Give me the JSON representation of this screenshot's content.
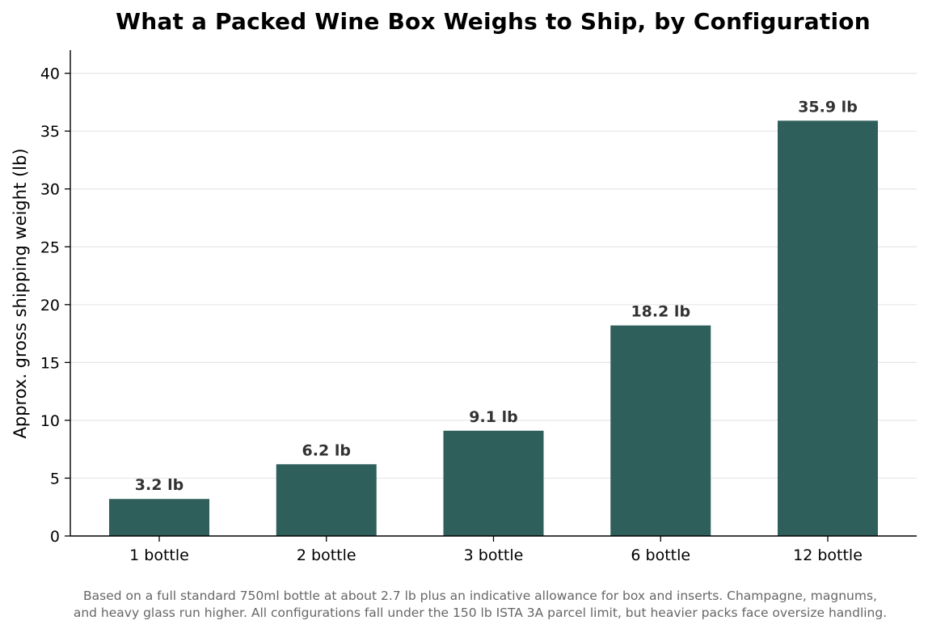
{
  "chart_data": {
    "type": "bar",
    "title": "What a Packed Wine Box Weighs to Ship, by Configuration",
    "categories": [
      "1 bottle",
      "2 bottle",
      "3 bottle",
      "6 bottle",
      "12 bottle"
    ],
    "values": [
      3.2,
      6.2,
      9.1,
      18.2,
      35.9
    ],
    "data_labels": [
      "3.2 lb",
      "6.2 lb",
      "9.1 lb",
      "18.2 lb",
      "35.9 lb"
    ],
    "xlabel": "",
    "ylabel": "Approx. gross shipping weight (lb)",
    "ylim": [
      0,
      42
    ],
    "yticks": [
      0,
      5,
      10,
      15,
      20,
      25,
      30,
      35,
      40
    ],
    "grid": "horizontal",
    "bar_color": "#2e5f5b"
  },
  "footnote": {
    "line1": "Based on a full standard 750ml bottle at about 2.7 lb plus an indicative allowance for box and inserts. Champagne, magnums,",
    "line2": "and heavy glass run higher. All configurations fall under the 150 lb ISTA 3A parcel limit, but heavier packs face oversize handling."
  }
}
